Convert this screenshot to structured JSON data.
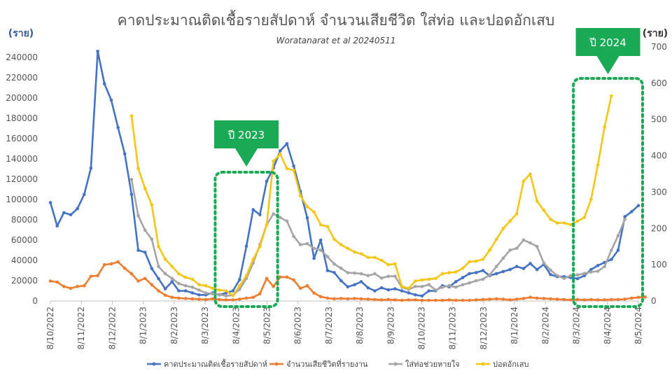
{
  "chart_data": {
    "type": "line",
    "title": "คาดประมาณติดเชื้อรายสัปดาห์ จำนวนเสียชีวิต ใส่ท่อ และปอดอักเสบ",
    "subtitle": "Woratanarat et al 20240511",
    "left_axis": {
      "unit_label": "(ราย)",
      "ylim": [
        0,
        260000
      ],
      "ticks": [
        0,
        20000,
        40000,
        60000,
        80000,
        100000,
        120000,
        140000,
        160000,
        180000,
        200000,
        220000,
        240000
      ],
      "tick_labels": [
        "0",
        "20000",
        "40000",
        "60000",
        "80000",
        "100000",
        "120000",
        "140000",
        "160000",
        "180000",
        "200000",
        "220000",
        "240000"
      ]
    },
    "right_axis": {
      "unit_label": "(ราย)",
      "ylim": [
        0,
        700
      ],
      "ticks": [
        0,
        100,
        200,
        300,
        400,
        500,
        600,
        700
      ],
      "tick_labels": [
        "0",
        "100",
        "200",
        "300",
        "400",
        "500",
        "600",
        "700"
      ]
    },
    "x_tick_labels": [
      "8/10/2022",
      "8/11/2022",
      "8/12/2022",
      "8/1/2023",
      "8/2/2023",
      "8/3/2023",
      "8/4/2023",
      "8/5/2023",
      "8/6/2023",
      "8/7/2023",
      "8/8/2023",
      "8/9/2023",
      "8/10/2023",
      "8/11/2023",
      "8/12/2023",
      "8/1/2024",
      "8/2/2024",
      "8/3/2024",
      "8/4/2024",
      "8/5/2024"
    ],
    "legend_position": "bottom",
    "grid": false,
    "series": [
      {
        "name": "คาดประมาณติดเชื้อรายสัปดาห์",
        "axis": "left",
        "color": "#4472c4",
        "start_index": 0,
        "values": [
          97000,
          74000,
          87000,
          85000,
          91000,
          105000,
          131000,
          246000,
          214000,
          198000,
          171000,
          145000,
          105000,
          50000,
          48000,
          32000,
          22000,
          12000,
          19000,
          10000,
          10000,
          8000,
          6000,
          6000,
          8000,
          6000,
          8000,
          10000,
          21000,
          54000,
          90000,
          85000,
          118000,
          131000,
          148000,
          155000,
          133000,
          108000,
          82000,
          42000,
          60000,
          30000,
          28000,
          20000,
          14000,
          16000,
          19000,
          13000,
          10000,
          13000,
          11000,
          12000,
          10000,
          8000,
          6000,
          5000,
          10000,
          10000,
          15000,
          14000,
          19000,
          23000,
          27000,
          28000,
          30000,
          25000,
          27000,
          29000,
          31000,
          34000,
          32000,
          37000,
          31000,
          36000,
          26000,
          24000,
          24000,
          23000,
          22000,
          25000,
          31000,
          35000,
          38000,
          41000,
          50000,
          83000,
          88000,
          94000
        ]
      },
      {
        "name": "จำนวนเสียชีวิตที่รายงาน",
        "axis": "right",
        "color": "#ed7d31",
        "start_index": 0,
        "values": [
          55,
          52,
          40,
          35,
          40,
          42,
          68,
          70,
          100,
          102,
          108,
          90,
          75,
          55,
          62,
          45,
          28,
          16,
          10,
          8,
          7,
          6,
          5,
          4,
          6,
          4,
          3,
          3,
          5,
          8,
          10,
          20,
          62,
          40,
          66,
          66,
          58,
          35,
          42,
          22,
          12,
          8,
          6,
          7,
          6,
          7,
          6,
          5,
          4,
          3,
          4,
          3,
          2,
          3,
          3,
          2,
          2,
          2,
          2,
          3,
          2,
          2,
          2,
          3,
          4,
          5,
          6,
          5,
          3,
          5,
          7,
          10,
          8,
          7,
          6,
          5,
          4,
          3,
          4,
          3,
          4,
          3,
          3,
          4,
          4,
          5,
          8,
          10,
          11
        ]
      },
      {
        "name": "ใส่ท่อช่วยหายใจ",
        "axis": "right",
        "color": "#a5a5a5",
        "start_index": 12,
        "values": [
          335,
          235,
          195,
          170,
          95,
          75,
          62,
          48,
          42,
          38,
          30,
          22,
          20,
          18,
          14,
          16,
          32,
          62,
          105,
          155,
          210,
          240,
          230,
          220,
          178,
          155,
          158,
          145,
          140,
          122,
          102,
          90,
          78,
          77,
          75,
          70,
          75,
          63,
          68,
          68,
          38,
          32,
          40,
          40,
          45,
          30,
          38,
          42,
          38,
          45,
          50,
          56,
          60,
          72,
          95,
          118,
          140,
          145,
          168,
          160,
          150,
          105,
          85,
          70,
          62,
          70,
          72,
          76,
          80,
          82,
          95,
          140,
          180,
          225
        ]
      },
      {
        "name": "ปอดอักเสบ",
        "axis": "right",
        "color": "#f5c518",
        "start_index": 12,
        "values": [
          510,
          365,
          310,
          265,
          150,
          115,
          95,
          75,
          65,
          60,
          45,
          42,
          35,
          30,
          28,
          15,
          42,
          70,
          115,
          150,
          210,
          385,
          405,
          365,
          360,
          290,
          260,
          245,
          210,
          205,
          170,
          155,
          145,
          135,
          130,
          120,
          120,
          112,
          100,
          102,
          40,
          35,
          55,
          58,
          60,
          62,
          75,
          78,
          80,
          90,
          108,
          110,
          115,
          140,
          170,
          200,
          220,
          240,
          330,
          350,
          275,
          250,
          225,
          215,
          215,
          210,
          220,
          230,
          280,
          375,
          480,
          565
        ]
      }
    ],
    "annotations": [
      {
        "label": "ปี 2023",
        "color": "#1aaa55",
        "start_index": 25,
        "end_index": 33
      },
      {
        "label": "ปี 2024",
        "color": "#1aaa55",
        "start_index": 78,
        "end_index": 87
      }
    ]
  }
}
